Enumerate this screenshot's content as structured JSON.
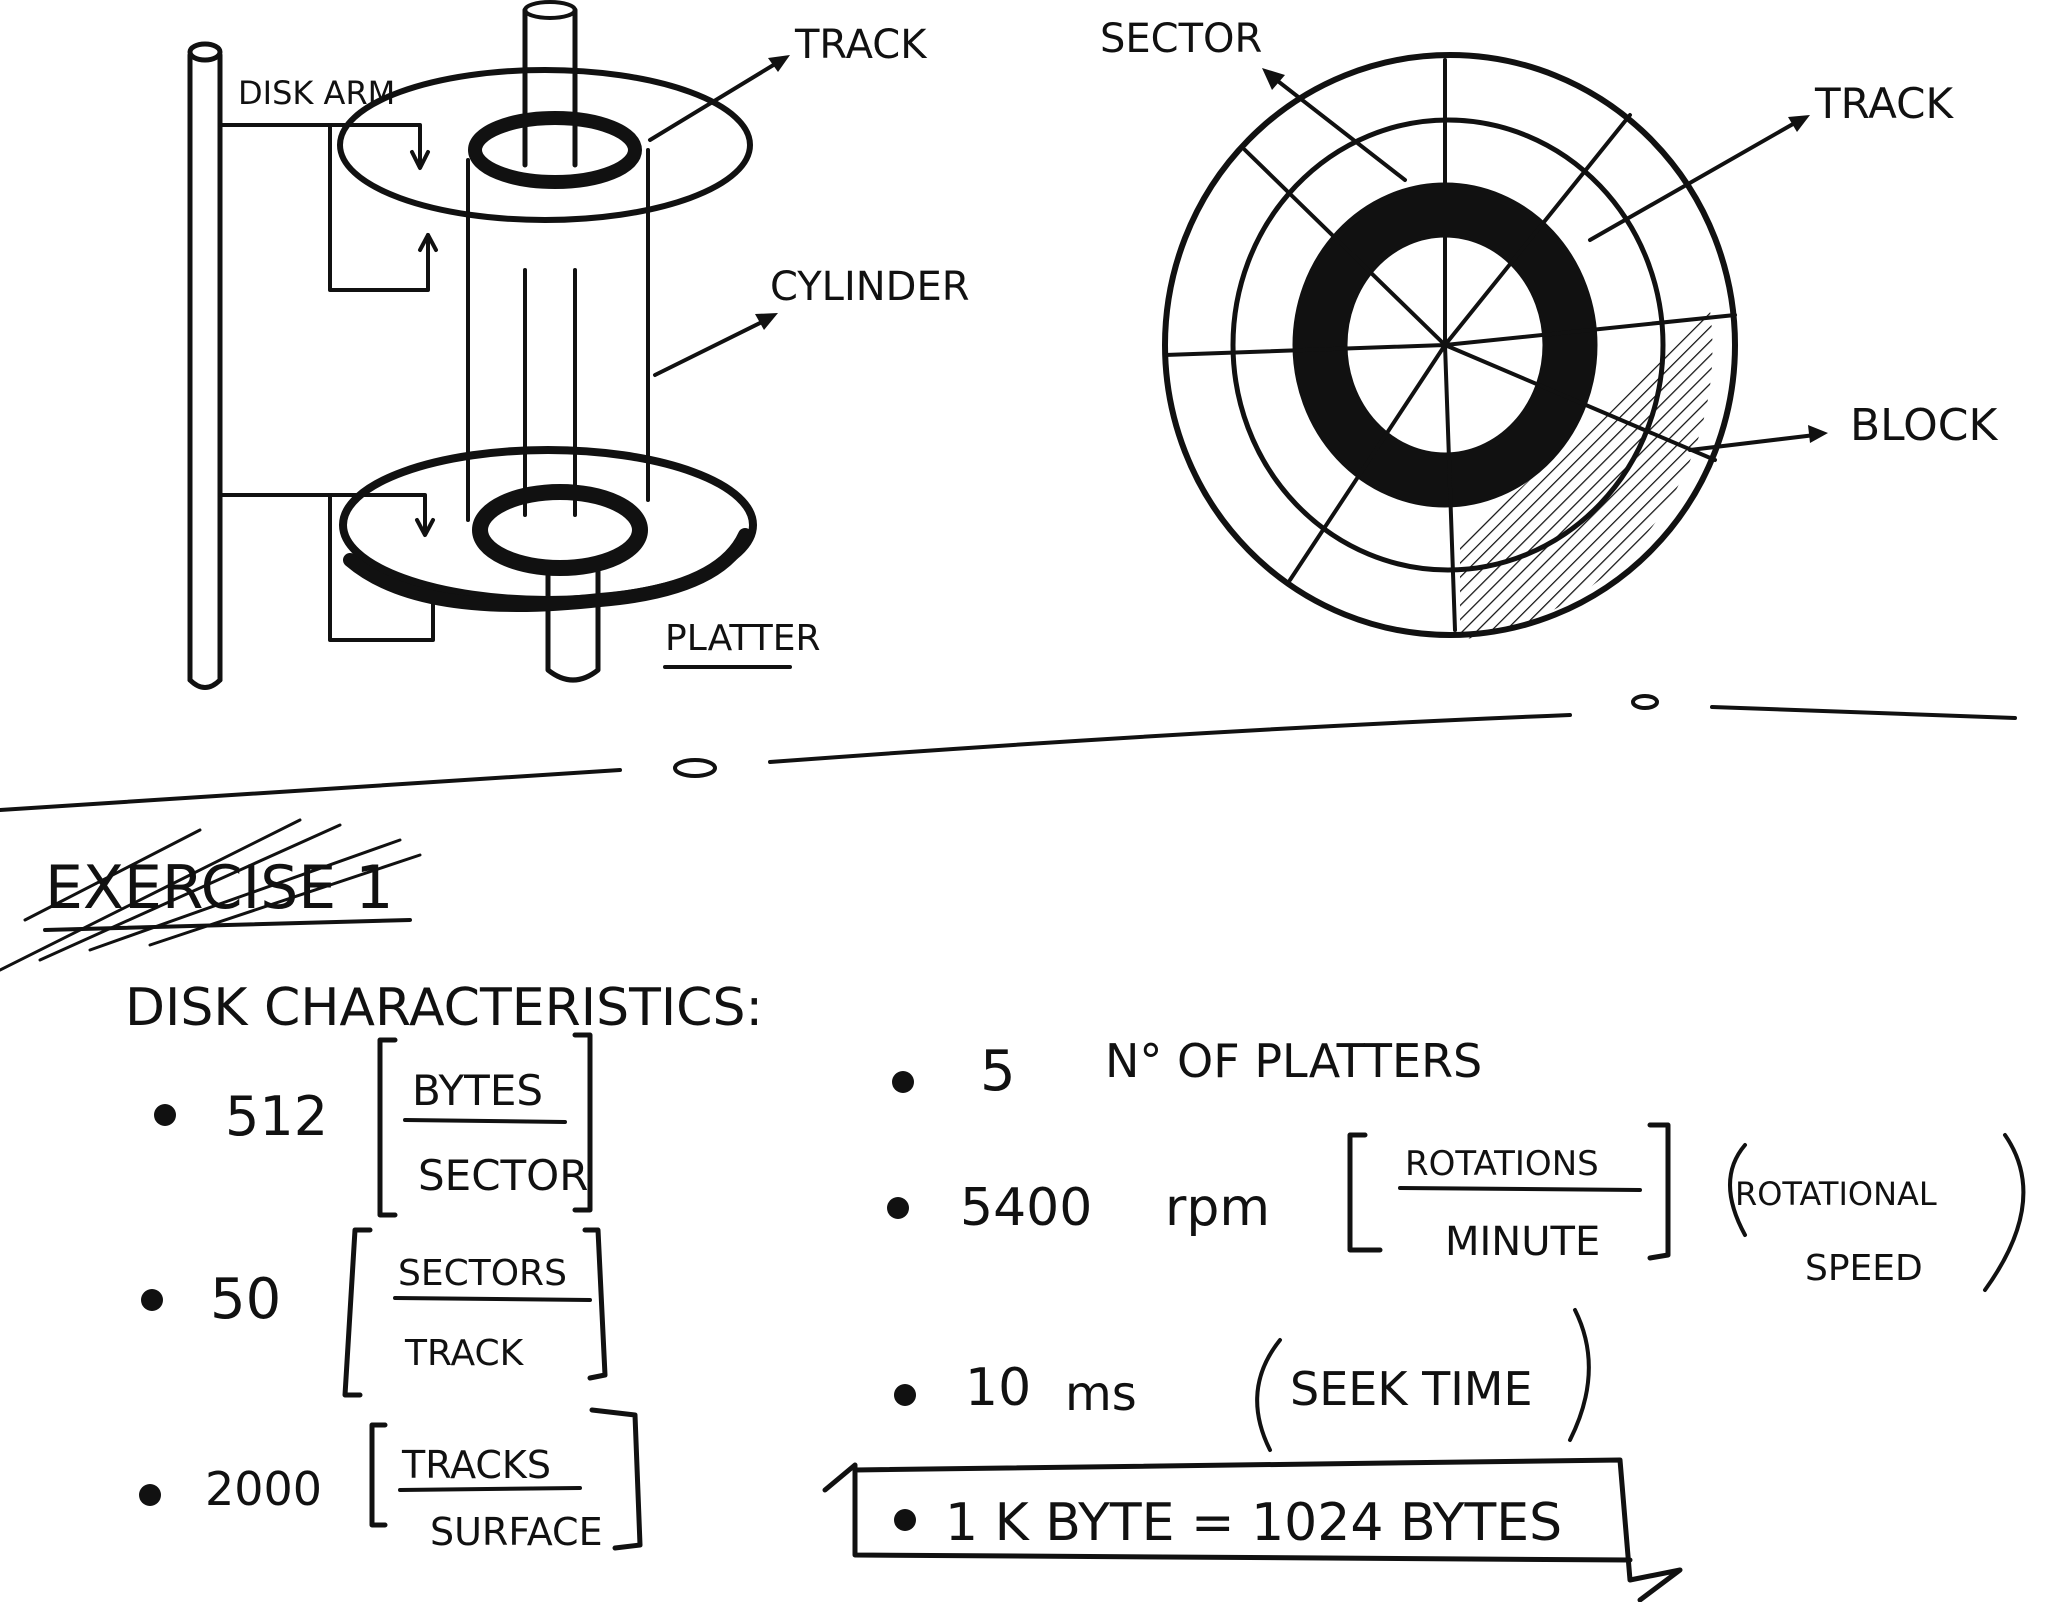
{
  "diagram": {
    "left_labels": {
      "disk_arm": "DISK ARM",
      "track": "TRACK",
      "cylinder": "CYLINDER",
      "platter": "PLATTER"
    },
    "right_labels": {
      "sector": "SECTOR",
      "track": "TRACK",
      "block": "BLOCK"
    }
  },
  "exercise": {
    "title": "EXERCISE 1",
    "subtitle": "DISK CHARACTERISTICS:",
    "left_items": [
      {
        "value": "512",
        "num": "BYTES",
        "den": "SECTOR"
      },
      {
        "value": "50",
        "num": "SECTORS",
        "den": "TRACK"
      },
      {
        "value": "2000",
        "num": "TRACKS",
        "den": "SURFACE"
      }
    ],
    "right_items": {
      "platters": {
        "value": "5",
        "text": "N° OF PLATTERS"
      },
      "rpm": {
        "value": "5400",
        "unit": "rpm",
        "num": "ROTATIONS",
        "den": "MINUTE",
        "note_line1": "ROTATIONAL",
        "note_line2": "SPEED"
      },
      "seek": {
        "value": "10",
        "unit": "ms",
        "note": "SEEK TIME"
      },
      "kbyte": {
        "text": "1 K BYTE = 1024 BYTES"
      }
    }
  }
}
